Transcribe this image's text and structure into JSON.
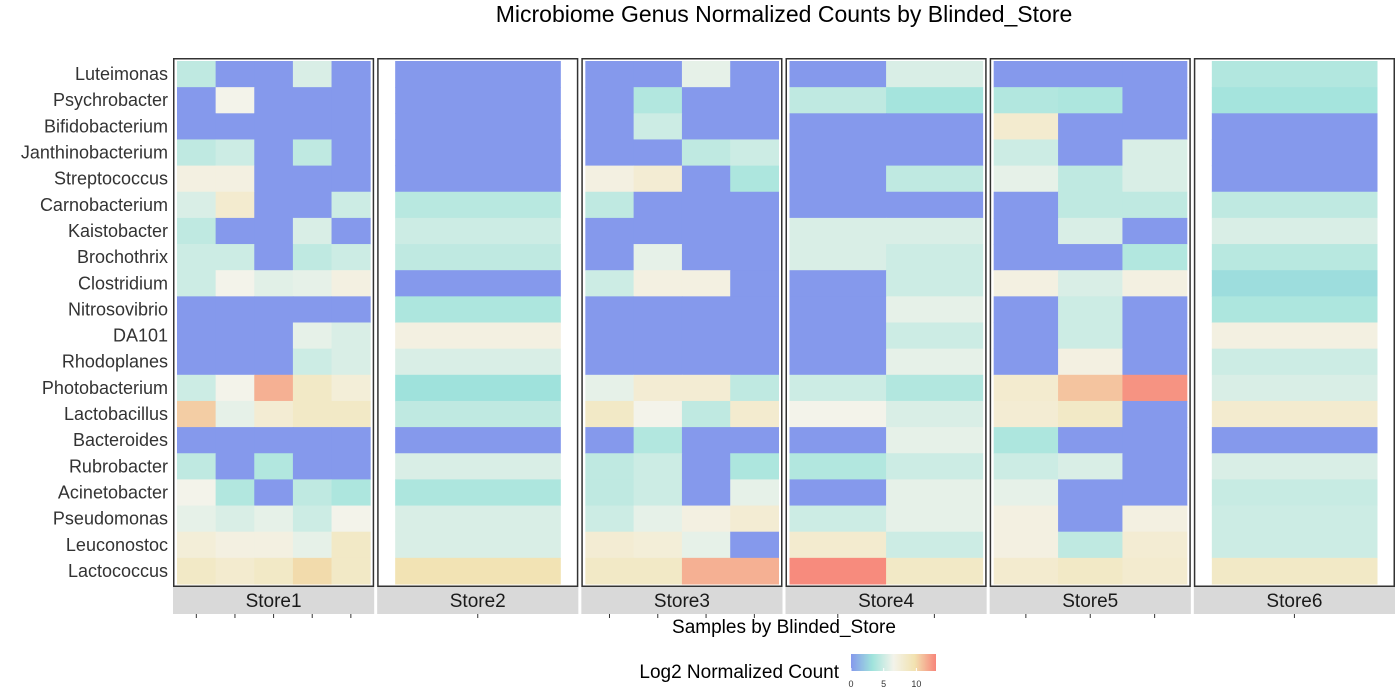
{
  "chart_data": {
    "type": "heatmap",
    "title": "Microbiome Genus Normalized Counts by Blinded_Store",
    "xlabel": "Samples by Blinded_Store",
    "legend": {
      "title": "Log2 Normalized Count",
      "ticks": [
        0,
        5,
        10
      ],
      "range": [
        0,
        13
      ],
      "colors": [
        "#8599ec",
        "#9fe3dc",
        "#f3f3ea",
        "#f2e2b0",
        "#f7857a"
      ],
      "placement": "bottom"
    },
    "genera": [
      "Luteimonas",
      "Psychrobacter",
      "Bifidobacterium",
      "Janthinobacterium",
      "Streptococcus",
      "Carnobacterium",
      "Kaistobacter",
      "Brochothrix",
      "Clostridium",
      "Nitrosovibrio",
      "DA101",
      "Rhodoplanes",
      "Photobacterium",
      "Lactobacillus",
      "Bacteroides",
      "Rubrobacter",
      "Acinetobacter",
      "Pseudomonas",
      "Leuconostoc",
      "Lactococcus"
    ],
    "facets": [
      {
        "name": "Store1",
        "samples": 5,
        "values": [
          [
            4.5,
            0,
            0,
            5.5,
            0
          ],
          [
            0,
            6.5,
            0,
            0,
            0
          ],
          [
            0,
            0,
            0,
            0,
            0
          ],
          [
            4.5,
            5,
            0,
            4.5,
            0
          ],
          [
            7,
            7,
            0,
            0,
            0
          ],
          [
            5.5,
            8,
            0,
            0,
            5
          ],
          [
            4.5,
            0,
            0,
            5.5,
            0
          ],
          [
            5,
            5,
            0,
            4.5,
            5
          ],
          [
            5,
            6.5,
            5.8,
            6,
            7
          ],
          [
            0,
            0,
            0,
            0,
            0
          ],
          [
            0,
            0,
            0,
            6,
            5.5
          ],
          [
            0,
            0,
            0,
            5,
            5.5
          ],
          [
            5,
            6.5,
            11.5,
            8.5,
            7.5
          ],
          [
            10.5,
            6,
            7.8,
            8.5,
            8.5
          ],
          [
            0,
            0,
            0,
            0,
            0
          ],
          [
            4.5,
            0,
            4,
            0,
            0
          ],
          [
            6.5,
            4,
            0,
            4.5,
            3.8
          ],
          [
            6,
            5.5,
            6,
            5,
            6.5
          ],
          [
            7.5,
            7,
            7,
            6,
            8.5
          ],
          [
            8.5,
            8,
            8.5,
            10,
            8.5
          ]
        ]
      },
      {
        "name": "Store2",
        "samples": 1,
        "values": [
          [
            0
          ],
          [
            0
          ],
          [
            0
          ],
          [
            0
          ],
          [
            0
          ],
          [
            4.2
          ],
          [
            5
          ],
          [
            4.5
          ],
          [
            0
          ],
          [
            3.8
          ],
          [
            7
          ],
          [
            5.5
          ],
          [
            3.2
          ],
          [
            4.5
          ],
          [
            0
          ],
          [
            5.5
          ],
          [
            3.8
          ],
          [
            5.5
          ],
          [
            5.5
          ],
          [
            9.5
          ]
        ]
      },
      {
        "name": "Store3",
        "samples": 4,
        "values": [
          [
            0,
            0,
            6,
            0
          ],
          [
            0,
            4,
            0,
            0
          ],
          [
            0,
            5,
            0,
            0
          ],
          [
            0,
            0,
            4.5,
            5
          ],
          [
            7,
            7.8,
            0,
            3.8
          ],
          [
            4.5,
            0,
            0,
            0
          ],
          [
            0,
            0,
            0,
            0
          ],
          [
            0,
            6,
            0,
            0
          ],
          [
            5,
            7,
            7,
            0
          ],
          [
            0,
            0,
            0,
            0
          ],
          [
            0,
            0,
            0,
            0
          ],
          [
            0,
            0,
            0,
            0
          ],
          [
            6,
            7.8,
            7.8,
            4.5
          ],
          [
            8.5,
            6.5,
            4.5,
            8
          ],
          [
            0,
            4,
            0,
            0
          ],
          [
            4.5,
            5,
            0,
            3.8
          ],
          [
            4.5,
            5,
            0,
            6
          ],
          [
            5,
            6,
            7,
            7.8
          ],
          [
            7.8,
            7.5,
            6,
            0
          ],
          [
            8.5,
            8.5,
            11.5,
            11.5
          ]
        ]
      },
      {
        "name": "Store4",
        "samples": 2,
        "values": [
          [
            0,
            5.5
          ],
          [
            4.5,
            3.5
          ],
          [
            0,
            0
          ],
          [
            0,
            0
          ],
          [
            0,
            4.5
          ],
          [
            0,
            0
          ],
          [
            5.5,
            5.5
          ],
          [
            5.5,
            5
          ],
          [
            0,
            5
          ],
          [
            0,
            6
          ],
          [
            0,
            5
          ],
          [
            0,
            6
          ],
          [
            5,
            4
          ],
          [
            6.5,
            5.5
          ],
          [
            0,
            6
          ],
          [
            4,
            5
          ],
          [
            0,
            6
          ],
          [
            5,
            6
          ],
          [
            8,
            5
          ],
          [
            12.8,
            8.5
          ]
        ]
      },
      {
        "name": "Store5",
        "samples": 3,
        "values": [
          [
            0,
            0,
            0
          ],
          [
            4,
            3.8,
            0
          ],
          [
            8,
            0,
            0
          ],
          [
            5,
            0,
            5.5
          ],
          [
            6,
            4.5,
            5.5
          ],
          [
            0,
            4.5,
            4.5
          ],
          [
            0,
            5.5,
            0
          ],
          [
            0,
            0,
            4
          ],
          [
            7,
            5.5,
            7
          ],
          [
            0,
            5,
            0
          ],
          [
            0,
            5,
            0
          ],
          [
            0,
            7,
            0
          ],
          [
            8,
            10.8,
            12.5
          ],
          [
            7.8,
            8.5,
            0
          ],
          [
            3.8,
            0,
            0
          ],
          [
            5,
            5.5,
            0
          ],
          [
            6,
            0,
            0
          ],
          [
            7,
            0,
            7
          ],
          [
            7,
            4.5,
            7.8
          ],
          [
            8,
            8.5,
            8
          ]
        ]
      },
      {
        "name": "Store6",
        "samples": 1,
        "values": [
          [
            4
          ],
          [
            3.5
          ],
          [
            0
          ],
          [
            0
          ],
          [
            0
          ],
          [
            4.5
          ],
          [
            5.5
          ],
          [
            4.2
          ],
          [
            3
          ],
          [
            3.8
          ],
          [
            7
          ],
          [
            5
          ],
          [
            5.5
          ],
          [
            8
          ],
          [
            0
          ],
          [
            5.5
          ],
          [
            4.8
          ],
          [
            5
          ],
          [
            5
          ],
          [
            8.5
          ]
        ]
      }
    ]
  }
}
